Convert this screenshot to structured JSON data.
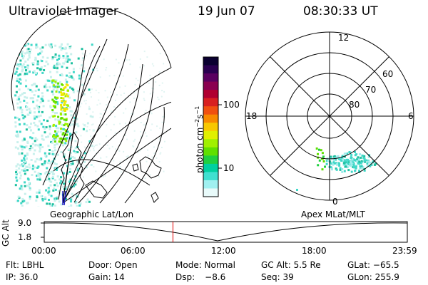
{
  "header": {
    "instrument": "Ultraviolet Imager",
    "date": "19 Jun 07",
    "time": "08:30:33 UT"
  },
  "colorbar": {
    "unit_label": "photon cm",
    "unit_exp1": "−2",
    "unit_mid": "s",
    "unit_exp2": "−1",
    "ticks": [
      "100",
      "10"
    ],
    "colors": [
      "#0a0030",
      "#2a0050",
      "#5a0060",
      "#8a0050",
      "#b00030",
      "#d82020",
      "#f05010",
      "#f88a00",
      "#f8c800",
      "#e0f000",
      "#a0f000",
      "#60e000",
      "#20d040",
      "#00d0a0",
      "#40e0d0",
      "#a0f0f0",
      "#e8fafa"
    ]
  },
  "polar_plot": {
    "mlt_labels": {
      "top": "12",
      "left": "18",
      "right": "6",
      "bottom": "0"
    },
    "lat_labels": [
      "60",
      "70",
      "80"
    ]
  },
  "left_panel": {
    "label": "Geographic Lat/Lon"
  },
  "right_panel": {
    "label": "Apex MLat/MLT"
  },
  "timeline": {
    "ylabel": "GC Alt",
    "y_ticks": [
      "9.0",
      "1.8"
    ],
    "x_ticks": [
      "00:00",
      "06:00",
      "12:00",
      "18:00",
      "23:59"
    ],
    "current_time_fraction": 0.3545,
    "marker_color": "#e00000"
  },
  "status": {
    "flt": "Flt: LBHL",
    "ip": "IP: 36.0",
    "door": "Door: Open",
    "gain": "Gain: 14",
    "mode": "Mode: Normal",
    "dsp_label": "Dsp:",
    "dsp_value": "−8.6",
    "gcalt": "GC Alt: 5.5 Re",
    "seq": "Seq: 39",
    "glat": "GLat: −65.5",
    "glon": "GLon: 255.9"
  }
}
